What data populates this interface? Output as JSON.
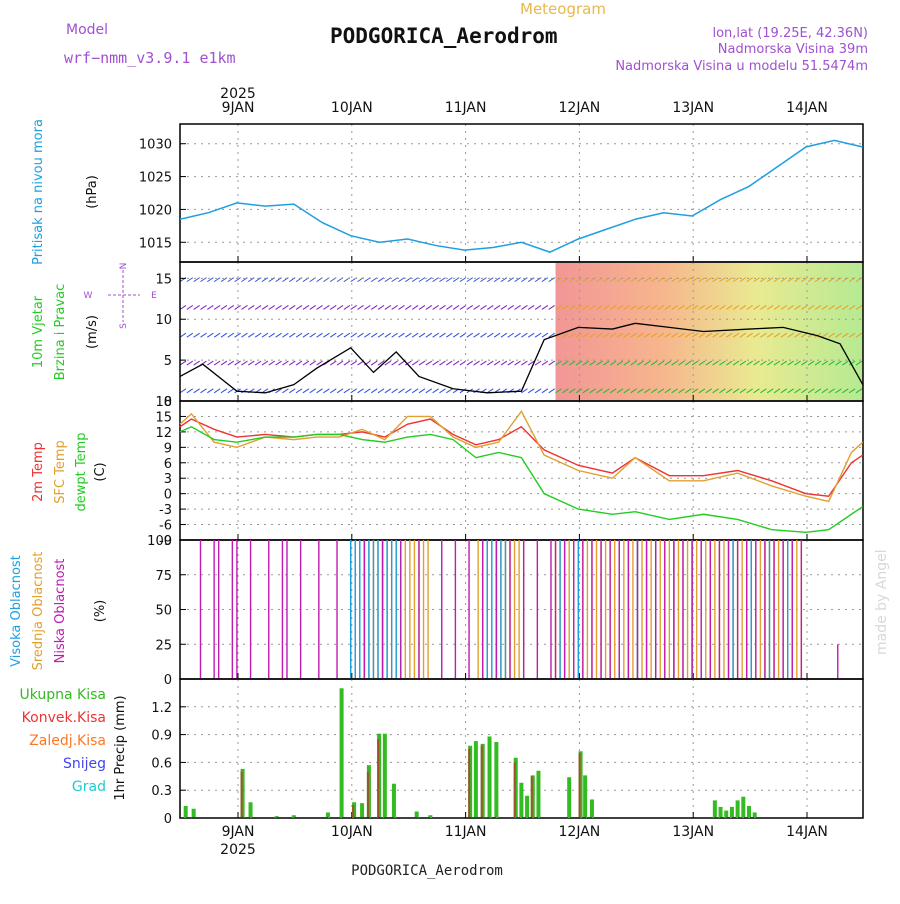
{
  "header": {
    "model_label": "Model",
    "model_name": "wrf−nmm_v3.9.1  e1km",
    "subtitle": "Meteogram",
    "station": "PODGORICA_Aerodrom",
    "coords": "lon,lat (19.25E, 42.36N)",
    "elevation": "Nadmorska Visina 39m",
    "model_elevation": "Nadmorska Visina u modelu 51.5474m",
    "watermark": "made by Angel",
    "footer_station": "PODGORICA_Aerodrom"
  },
  "time_axis": {
    "year": "2025",
    "days": [
      "9JAN",
      "10JAN",
      "11JAN",
      "12JAN",
      "13JAN",
      "14JAN"
    ],
    "range_days": [
      0,
      6.0
    ]
  },
  "colors": {
    "pressure": "#1e9fe0",
    "wind_label": "#22cc22",
    "t2m": "#ee3333",
    "tsfc": "#e0a030",
    "dewpt": "#22cc22",
    "cloud_high": "#1e9fe0",
    "cloud_mid": "#e0a030",
    "cloud_low": "#c01ab0",
    "precip_total": "#33bb22",
    "precip_conv": "#ee3333",
    "precip_frozen": "#ff7722",
    "snow": "#4444ee",
    "graupel": "#22cccc",
    "title_purple": "#a050d0"
  },
  "chart_data": [
    {
      "type": "line",
      "ylabel_main": "Pritisak na nivou mora",
      "ylabel_unit": "(hPa)",
      "ylim": [
        1012,
        1033
      ],
      "yticks": [
        1015,
        1020,
        1025,
        1030
      ],
      "grid": true,
      "series": [
        {
          "name": "Pritisak na nivou mora",
          "x": [
            0,
            0.25,
            0.5,
            0.75,
            1.0,
            1.25,
            1.5,
            1.75,
            2.0,
            2.25,
            2.5,
            2.75,
            3.0,
            3.25,
            3.5,
            3.75,
            4.0,
            4.25,
            4.5,
            4.75,
            5.0,
            5.25,
            5.5,
            5.75,
            6.0
          ],
          "values": [
            1018.5,
            1019.5,
            1021.0,
            1020.5,
            1020.8,
            1018.0,
            1016.0,
            1015.0,
            1015.5,
            1014.5,
            1013.8,
            1014.2,
            1015.0,
            1013.5,
            1015.5,
            1017.0,
            1018.5,
            1019.5,
            1019.0,
            1021.5,
            1023.5,
            1026.5,
            1029.5,
            1030.5,
            1029.5
          ]
        }
      ]
    },
    {
      "type": "line",
      "ylabel_main": "10m Vjetar",
      "ylabel_sub": "Brzina i Pravac",
      "ylabel_unit": "(m/s)",
      "compass": [
        "N",
        "W",
        "E",
        "S"
      ],
      "ylim": [
        0,
        17
      ],
      "yticks": [
        0,
        5,
        10,
        15
      ],
      "grid": true,
      "series": [
        {
          "name": "10m Vjetar",
          "x": [
            0,
            0.2,
            0.5,
            0.75,
            1.0,
            1.2,
            1.5,
            1.7,
            1.9,
            2.1,
            2.4,
            2.7,
            3.0,
            3.2,
            3.5,
            3.8,
            4.0,
            4.3,
            4.6,
            5.0,
            5.3,
            5.6,
            5.8,
            6.0
          ],
          "values": [
            3.0,
            4.5,
            1.2,
            1.0,
            2.0,
            4.0,
            6.5,
            3.5,
            6.0,
            3.0,
            1.5,
            1.0,
            1.2,
            7.5,
            9.0,
            8.8,
            9.5,
            9.0,
            8.5,
            8.8,
            9.0,
            8.0,
            7.0,
            2.0
          ]
        }
      ]
    },
    {
      "type": "line",
      "ylabel_lines": [
        "2m Temp",
        "SFC Temp",
        "dewpt Temp"
      ],
      "ylabel_unit": "(C)",
      "ylim": [
        -9,
        18
      ],
      "yticks": [
        -9,
        -6,
        -3,
        0,
        3,
        6,
        9,
        12,
        15,
        18
      ],
      "grid": true,
      "x": [
        0,
        0.1,
        0.3,
        0.5,
        0.75,
        1.0,
        1.2,
        1.4,
        1.6,
        1.8,
        2.0,
        2.2,
        2.4,
        2.6,
        2.8,
        3.0,
        3.2,
        3.5,
        3.8,
        4.0,
        4.3,
        4.6,
        4.9,
        5.2,
        5.5,
        5.7,
        5.9,
        6.0
      ],
      "series": [
        {
          "name": "2m Temp",
          "values": [
            13.0,
            14.5,
            12.5,
            11.0,
            11.5,
            11.0,
            11.5,
            11.5,
            12.0,
            11.0,
            13.5,
            14.5,
            11.5,
            9.5,
            10.5,
            13.0,
            8.5,
            5.5,
            4.0,
            7.0,
            3.5,
            3.5,
            4.5,
            2.5,
            0.0,
            -0.5,
            6.0,
            7.5
          ]
        },
        {
          "name": "SFC Temp",
          "values": [
            13.5,
            15.5,
            10.0,
            9.0,
            11.0,
            10.5,
            11.0,
            11.0,
            12.5,
            10.5,
            15.0,
            15.0,
            11.0,
            9.0,
            10.0,
            16.0,
            7.5,
            4.5,
            3.0,
            7.0,
            2.5,
            2.5,
            4.0,
            1.5,
            -0.5,
            -1.5,
            8.0,
            10.0
          ]
        },
        {
          "name": "dewpt Temp",
          "values": [
            12.0,
            13.0,
            10.5,
            10.0,
            11.0,
            11.0,
            11.5,
            11.5,
            10.5,
            10.0,
            11.0,
            11.5,
            10.5,
            7.0,
            8.0,
            7.0,
            0.0,
            -3.0,
            -4.0,
            -3.5,
            -5.0,
            -4.0,
            -5.0,
            -7.0,
            -7.5,
            -7.0,
            -4.0,
            -2.5
          ]
        }
      ]
    },
    {
      "type": "bar",
      "ylabel_lines": [
        "Visoka Oblacnost",
        "Srednja Oblacnost",
        "Niska Oblacnost"
      ],
      "ylabel_unit": "(%)",
      "ylim": [
        0,
        100
      ],
      "yticks": [
        0,
        25,
        50,
        75,
        100
      ],
      "grid": true
    },
    {
      "type": "bar",
      "ylabel_main": "1hr Precip (mm)",
      "legend": [
        "Ukupna Kisa",
        "Konvek.Kisa",
        "Zaledj.Kisa",
        "Snijeg",
        "Grad"
      ],
      "ylim": [
        0,
        1.5
      ],
      "yticks": [
        0,
        0.3,
        0.6,
        0.9,
        1.2
      ],
      "ytick_labels": [
        "0",
        "0.3",
        "0.6",
        "0.9",
        "1.2"
      ],
      "grid": true,
      "series": [
        {
          "name": "Ukupna Kisa",
          "x": [
            0.05,
            0.12,
            0.55,
            0.62,
            0.85,
            1.0,
            1.3,
            1.42,
            1.53,
            1.6,
            1.66,
            1.75,
            1.8,
            1.88,
            2.08,
            2.2,
            2.55,
            2.6,
            2.66,
            2.72,
            2.78,
            2.95,
            3.0,
            3.05,
            3.1,
            3.15,
            3.42,
            3.52,
            3.56,
            3.62,
            4.7,
            4.75,
            4.8,
            4.85,
            4.9,
            4.95,
            5.0,
            5.05
          ],
          "values": [
            0.13,
            0.1,
            0.53,
            0.17,
            0.02,
            0.03,
            0.06,
            1.4,
            0.17,
            0.16,
            0.57,
            0.91,
            0.91,
            0.37,
            0.07,
            0.03,
            0.78,
            0.83,
            0.8,
            0.88,
            0.82,
            0.65,
            0.38,
            0.24,
            0.46,
            0.51,
            0.44,
            0.72,
            0.46,
            0.2,
            0.19,
            0.12,
            0.08,
            0.12,
            0.19,
            0.23,
            0.13,
            0.06
          ]
        },
        {
          "name": "Konvek.Kisa",
          "x": [
            0.55,
            1.53,
            1.66,
            1.75,
            2.55,
            2.66,
            2.95,
            3.1,
            3.52
          ],
          "values": [
            0.5,
            0.14,
            0.5,
            0.85,
            0.75,
            0.78,
            0.6,
            0.45,
            0.7
          ]
        }
      ]
    }
  ]
}
